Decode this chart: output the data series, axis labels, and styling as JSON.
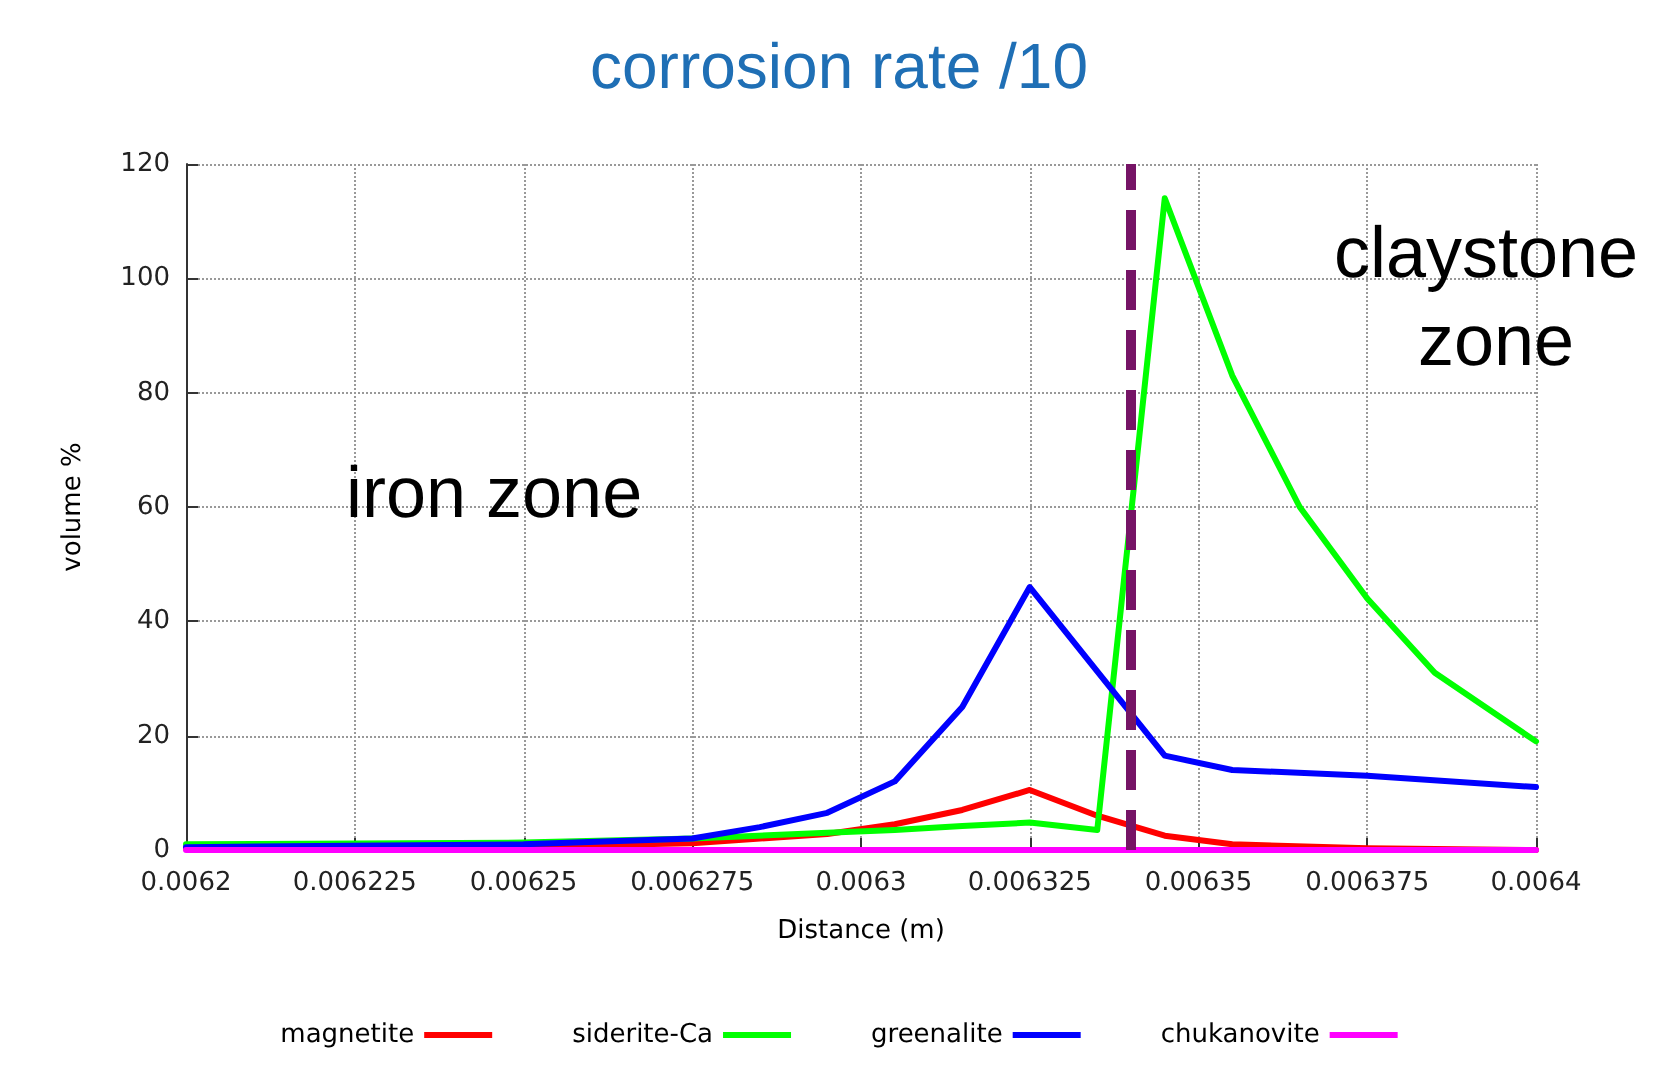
{
  "chart_data": {
    "type": "line",
    "title": "corrosion rate /10",
    "xlabel": "Distance (m)",
    "ylabel": "volume %",
    "annotations": [
      "iron zone",
      "claystone zone"
    ],
    "xlim": [
      0.0062,
      0.0064
    ],
    "xticks": [
      0.0062,
      0.006225,
      0.00625,
      0.006275,
      0.0063,
      0.006325,
      0.00635,
      0.006375,
      0.0064
    ],
    "ylim": [
      0,
      120
    ],
    "yticks": [
      0,
      20,
      40,
      60,
      80,
      100,
      120
    ],
    "grid": true,
    "legend": "bottom",
    "marker": "none",
    "line_style": "solid",
    "ref_lines": [
      {
        "axis": "x",
        "value": 0.00634,
        "label": null,
        "color": "#761466",
        "line_style": "dashed"
      }
    ],
    "series": [
      {
        "name": "magnetite",
        "color": "#ff0000",
        "x": [
          0.0062,
          0.00625,
          0.006275,
          0.006295,
          0.006305,
          0.006315,
          0.006325,
          0.006335,
          0.006345,
          0.006355,
          0.006375,
          0.0064
        ],
        "values": [
          0.3,
          0.6,
          1.2,
          2.8,
          4.5,
          7,
          10.5,
          6,
          2.5,
          1,
          0.3,
          0
        ]
      },
      {
        "name": "siderite-Ca",
        "color": "#00ff00",
        "x": [
          0.0062,
          0.00625,
          0.006275,
          0.006295,
          0.006305,
          0.006315,
          0.006325,
          0.006335,
          0.006345,
          0.006355,
          0.006365,
          0.006375,
          0.006385,
          0.0064
        ],
        "values": [
          1,
          1.3,
          2,
          3,
          3.5,
          4.2,
          4.8,
          3.5,
          114,
          83,
          60,
          44,
          31,
          19
        ]
      },
      {
        "name": "greenalite",
        "color": "#0000ff",
        "x": [
          0.0062,
          0.00625,
          0.006275,
          0.006285,
          0.006295,
          0.006305,
          0.006315,
          0.006325,
          0.006345,
          0.006355,
          0.006375,
          0.0064
        ],
        "values": [
          0.5,
          1,
          2,
          4,
          6.5,
          12,
          25,
          46,
          16.5,
          14,
          13,
          11
        ]
      },
      {
        "name": "chukanovite",
        "color": "#ff00ff",
        "x": [
          0.0062,
          0.0064
        ],
        "values": [
          0,
          0
        ]
      }
    ]
  }
}
